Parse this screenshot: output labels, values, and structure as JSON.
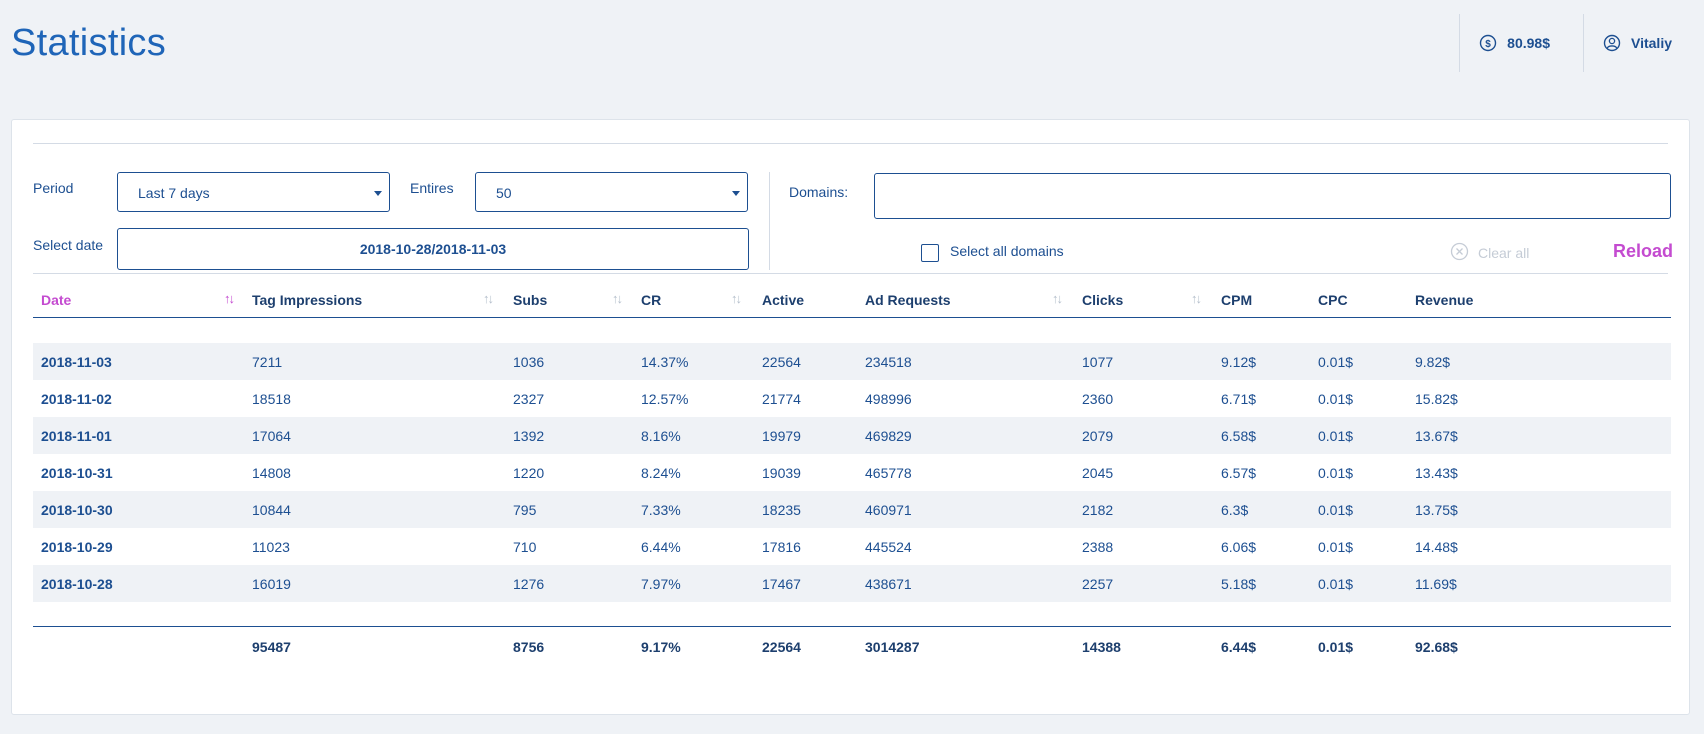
{
  "header": {
    "title": "Statistics",
    "balance": "80.98$",
    "user": "Vitaliy"
  },
  "filters": {
    "period_label": "Period",
    "period_value": "Last 7 days",
    "entries_label": "Entires",
    "entries_value": "50",
    "select_date_label": "Select date",
    "date_range": "2018-10-28/2018-11-03",
    "domains_label": "Domains:",
    "domains_value": "",
    "select_all_label": "Select all domains",
    "clear_all_label": "Clear all",
    "reload_label": "Reload"
  },
  "table": {
    "columns": [
      "Date",
      "Tag Impressions",
      "Subs",
      "CR",
      "Active",
      "Ad Requests",
      "Clicks",
      "CPM",
      "CPC",
      "Revenue"
    ],
    "sorted_column": "Date",
    "rows": [
      [
        "2018-11-03",
        "7211",
        "1036",
        "14.37%",
        "22564",
        "234518",
        "1077",
        "9.12$",
        "0.01$",
        "9.82$"
      ],
      [
        "2018-11-02",
        "18518",
        "2327",
        "12.57%",
        "21774",
        "498996",
        "2360",
        "6.71$",
        "0.01$",
        "15.82$"
      ],
      [
        "2018-11-01",
        "17064",
        "1392",
        "8.16%",
        "19979",
        "469829",
        "2079",
        "6.58$",
        "0.01$",
        "13.67$"
      ],
      [
        "2018-10-31",
        "14808",
        "1220",
        "8.24%",
        "19039",
        "465778",
        "2045",
        "6.57$",
        "0.01$",
        "13.43$"
      ],
      [
        "2018-10-30",
        "10844",
        "795",
        "7.33%",
        "18235",
        "460971",
        "2182",
        "6.3$",
        "0.01$",
        "13.75$"
      ],
      [
        "2018-10-29",
        "11023",
        "710",
        "6.44%",
        "17816",
        "445524",
        "2388",
        "6.06$",
        "0.01$",
        "14.48$"
      ],
      [
        "2018-10-28",
        "16019",
        "1276",
        "7.97%",
        "17467",
        "438671",
        "2257",
        "5.18$",
        "0.01$",
        "11.69$"
      ]
    ],
    "totals": [
      "",
      "95487",
      "8756",
      "9.17%",
      "22564",
      "3014287",
      "14388",
      "6.44$",
      "0.01$",
      "92.68$"
    ]
  },
  "icons": {
    "balance": "dollar-circle-icon",
    "user": "user-circle-icon",
    "clear": "close-circle-icon",
    "sort": "sort-arrows-icon"
  },
  "colors": {
    "primary": "#1d4f91",
    "title": "#1f65b8",
    "accent": "#c44bd0",
    "background": "#eff2f6",
    "stripe": "#eff2f6"
  }
}
